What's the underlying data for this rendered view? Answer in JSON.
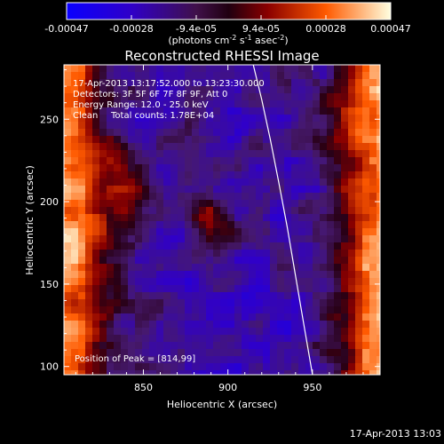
{
  "chart_data": {
    "type": "heatmap",
    "title": "Reconstructed RHESSI Image",
    "xlabel": "Heliocentric X (arcsec)",
    "ylabel": "Heliocentric Y (arcsec)",
    "xlim": [
      803,
      990
    ],
    "ylim": [
      95,
      283
    ],
    "x_ticks": [
      850,
      900,
      950
    ],
    "y_ticks": [
      100,
      150,
      200,
      250
    ],
    "colorbar": {
      "ticks": [
        "-0.00047",
        "-0.00028",
        "-9.4e-05",
        "9.4e-05",
        "0.00028",
        "0.00047"
      ],
      "unit_label": "(photons cm",
      "unit_exp1": "-2",
      "unit_mid": " s",
      "unit_exp2": "-1",
      "unit_mid2": " asec",
      "unit_exp3": "-2",
      "unit_close": ")",
      "range": [
        -0.00047,
        0.00047
      ]
    },
    "annotations": {
      "time": "17-Apr-2013 13:17:52.000 to 13:23:30.000",
      "detectors": "Detectors: 3F 5F 6F 7F 8F 9F, Att 0",
      "energy": "Energy Range: 12.0 - 25.0 keV",
      "method": "Clean",
      "counts": "Total counts: 1.78E+04",
      "peak": "Position of Peak = [814,99]"
    },
    "limb": {
      "x": [
        915,
        920,
        925,
        930,
        935,
        940,
        945,
        950
      ],
      "y": [
        283,
        262,
        238,
        212,
        185,
        155,
        125,
        95
      ]
    },
    "timestamp": "17-Apr-2013 13:03"
  }
}
